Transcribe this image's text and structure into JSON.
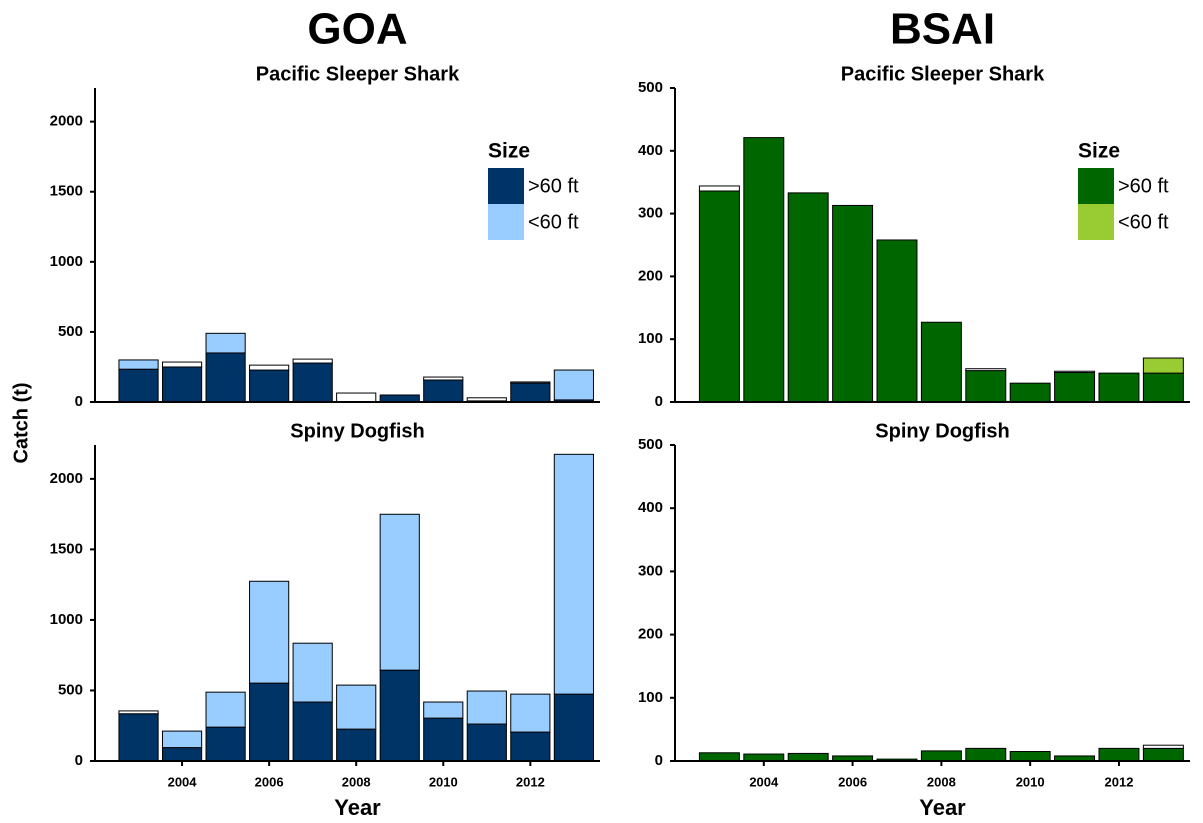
{
  "chart_data": [
    {
      "type": "bar",
      "supertitle": "GOA",
      "title": "Pacific Sleeper Shark",
      "ylabel": "Catch (t)",
      "x": [
        2003,
        2004,
        2005,
        2006,
        2007,
        2008,
        2009,
        2010,
        2011,
        2012,
        2013
      ],
      "xlim": [
        2002,
        2013.6
      ],
      "ylim": [
        0,
        2240
      ],
      "yticks": [
        0,
        500,
        1000,
        1500,
        2000
      ],
      "legend": "upper right",
      "legend_title": "Size",
      "series": [
        {
          "name": ">60 ft",
          "color": "#003366",
          "values": [
            234,
            250,
            350,
            228,
            278,
            0,
            50,
            157,
            8,
            135,
            15
          ]
        },
        {
          "name": "<60 ft",
          "color": "#99ccff",
          "values": [
            66,
            0,
            140,
            0,
            0,
            0,
            0,
            0,
            0,
            0,
            213
          ]
        },
        {
          "color": "#ffffff",
          "values": [
            0,
            35,
            0,
            35,
            28,
            64,
            0,
            21,
            22,
            8,
            0
          ]
        }
      ]
    },
    {
      "type": "bar",
      "supertitle": "BSAI",
      "title": "Pacific Sleeper Shark",
      "x": [
        2003,
        2004,
        2005,
        2006,
        2007,
        2008,
        2009,
        2010,
        2011,
        2012,
        2013
      ],
      "xlim": [
        2002,
        2013.6
      ],
      "ylim": [
        0,
        500
      ],
      "yticks": [
        0,
        100,
        200,
        300,
        400,
        500
      ],
      "legend": "upper right",
      "legend_title": "Size",
      "series": [
        {
          "name": ">60 ft",
          "color": "#006600",
          "values": [
            336,
            421,
            333,
            313,
            258,
            127,
            50,
            30,
            47,
            46,
            46
          ]
        },
        {
          "name": "<60 ft",
          "color": "#99cc33",
          "values": [
            0,
            0,
            0,
            0,
            0,
            0,
            0,
            0,
            0,
            0,
            24
          ]
        },
        {
          "color": "#ffffff",
          "values": [
            8,
            0,
            0,
            0,
            0,
            0,
            3,
            0,
            2,
            0,
            0
          ]
        }
      ]
    },
    {
      "type": "bar",
      "title": "Spiny Dogfish",
      "xlabel": "Year",
      "x": [
        2003,
        2004,
        2005,
        2006,
        2007,
        2008,
        2009,
        2010,
        2011,
        2012,
        2013
      ],
      "xlim": [
        2002,
        2013.6
      ],
      "xticks": [
        2004,
        2006,
        2008,
        2010,
        2012
      ],
      "ylim": [
        0,
        2240
      ],
      "yticks": [
        0,
        500,
        1000,
        1500,
        2000
      ],
      "series": [
        {
          "color": "#003366",
          "values": [
            335,
            95,
            240,
            552,
            418,
            226,
            644,
            304,
            262,
            205,
            474
          ]
        },
        {
          "color": "#99ccff",
          "values": [
            0,
            117,
            248,
            722,
            417,
            312,
            1105,
            114,
            234,
            269,
            1700
          ]
        },
        {
          "color": "#ffffff",
          "values": [
            20,
            0,
            0,
            0,
            0,
            0,
            0,
            0,
            0,
            0,
            0
          ]
        }
      ]
    },
    {
      "type": "bar",
      "title": "Spiny Dogfish",
      "xlabel": "Year",
      "x": [
        2003,
        2004,
        2005,
        2006,
        2007,
        2008,
        2009,
        2010,
        2011,
        2012,
        2013
      ],
      "xlim": [
        2002,
        2013.6
      ],
      "xticks": [
        2004,
        2006,
        2008,
        2010,
        2012
      ],
      "ylim": [
        0,
        500
      ],
      "yticks": [
        0,
        100,
        200,
        300,
        400,
        500
      ],
      "series": [
        {
          "color": "#006600",
          "values": [
            13,
            11,
            12,
            8,
            3,
            16,
            20,
            15,
            8,
            20,
            20
          ]
        },
        {
          "color": "#ffffff",
          "values": [
            0,
            0,
            0,
            0,
            0,
            0,
            0,
            0,
            0,
            0,
            5
          ]
        }
      ]
    }
  ]
}
